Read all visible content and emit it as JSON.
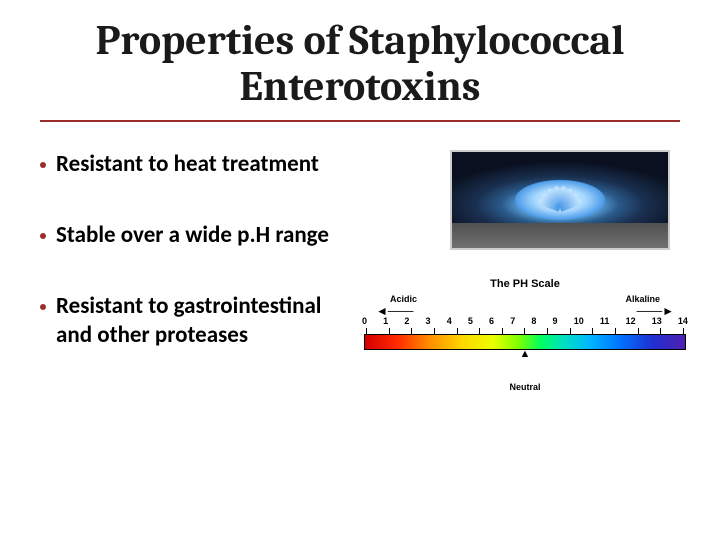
{
  "title_line1": "Properties of Staphylococcal",
  "title_line2": "Enterotoxins",
  "bullets": [
    "Resistant to heat treatment",
    "Stable over a wide p.H range",
    "Resistant to gastrointestinal and other proteases"
  ],
  "ph_scale": {
    "title": "The PH Scale",
    "acidic_label": "Acidic",
    "alkaline_label": "Alkaline",
    "neutral_label": "Neutral",
    "numbers": [
      "0",
      "1",
      "2",
      "3",
      "4",
      "5",
      "6",
      "7",
      "8",
      "9",
      "10",
      "11",
      "12",
      "13",
      "14"
    ],
    "gradient_colors": [
      "#d40000",
      "#ff2a00",
      "#ff8c00",
      "#ffd400",
      "#eaff00",
      "#7fff00",
      "#00ff60",
      "#00e0c0",
      "#00b8ff",
      "#0070ff",
      "#2030d0",
      "#5020b0"
    ]
  },
  "colors": {
    "accent": "#9b2d2d",
    "text": "#000000",
    "background": "#ffffff"
  }
}
